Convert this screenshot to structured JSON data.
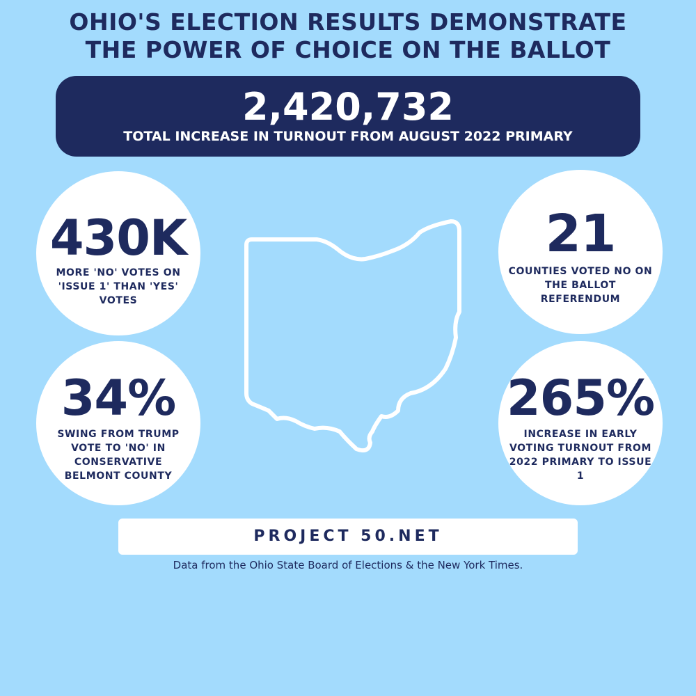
{
  "headline": {
    "line1": "OHIO'S ELECTION RESULTS DEMONSTRATE",
    "line2": "THE POWER OF CHOICE ON THE BALLOT"
  },
  "banner": {
    "number": "2,420,732",
    "label": "TOTAL INCREASE IN TURNOUT FROM AUGUST 2022 PRIMARY"
  },
  "stats": [
    {
      "value": "430K",
      "label": "MORE 'NO' VOTES ON 'ISSUE 1' THAN 'YES' VOTES"
    },
    {
      "value": "21",
      "label": "COUNTIES VOTED NO ON THE BALLOT REFERENDUM"
    },
    {
      "value": "34%",
      "label": "SWING FROM TRUMP VOTE TO 'NO' IN CONSERVATIVE BELMONT COUNTY"
    },
    {
      "value": "265%",
      "label": "INCREASE IN EARLY VOTING TURNOUT FROM 2022 PRIMARY TO ISSUE 1"
    }
  ],
  "map": {
    "icon": "ohio-state-outline-icon"
  },
  "footer": {
    "link": "PROJECT 50.NET",
    "source": "Data from the Ohio State Board of Elections & the New York Times."
  },
  "colors": {
    "background": "#a3dbfd",
    "navy": "#1e2a5e",
    "white": "#ffffff"
  }
}
